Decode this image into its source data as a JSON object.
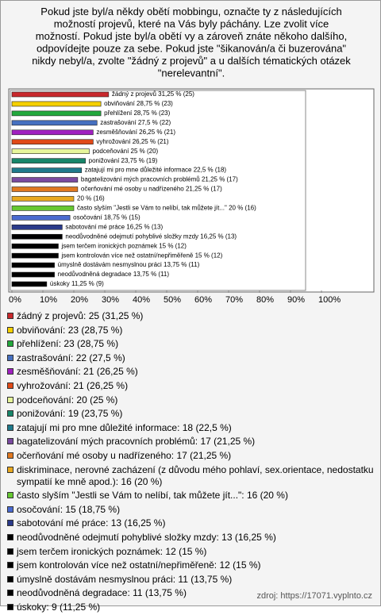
{
  "chart_data": {
    "type": "bar",
    "orientation": "horizontal",
    "title": [
      "Pokud jste byl/a někdy obětí mobbingu, označte ty z následujících",
      "možností projevů, které na Vás byly páchány. Lze zvolit více",
      "možností. Pokud jste byl/a obětí vy a zároveň znáte někoho dalšího,",
      "odpovídejte pouze za sebe. Pokud jste \"šikanován/a či buzerována\"",
      "nikdy nebyl/a, zvolte \"žádný z projevů\" a u dalších tématických otázek",
      "\"nerelevantní\"."
    ],
    "values": [
      31.25,
      28.75,
      28.75,
      27.5,
      26.25,
      26.25,
      25,
      23.75,
      22.5,
      21.25,
      21.25,
      20,
      20,
      18.75,
      16.25,
      16.25,
      15,
      15,
      13.75,
      13.75,
      11.25
    ],
    "counts": [
      25,
      23,
      23,
      22,
      21,
      21,
      20,
      19,
      18,
      17,
      17,
      16,
      16,
      15,
      13,
      13,
      12,
      12,
      11,
      11,
      9
    ],
    "value_labels": [
      "žádný z projevů 31,25 % (25)",
      "obviňování 28,75 % (23)",
      "přehlížení 28,75 % (23)",
      "zastrašování 27,5 % (22)",
      "zesměšňování 26,25 % (21)",
      "vyhrožování 26,25 % (21)",
      "podceňování 25 % (20)",
      "ponižování 23,75 % (19)",
      "zatajují mi pro mne důležité informace 22,5 % (18)",
      "bagatelizování mých pracovních problémů 21,25 % (17)",
      "očerňování mé osoby u nadřízeného 21,25 % (17)",
      "20 % (16)",
      "často slyším \"Jestli se Vám to nelíbí, tak můžete jít...\" 20 % (16)",
      "osočování 18,75 % (15)",
      "sabotování mé práce 16,25 % (13)",
      "neodůvodněné odejmutí pohyblivé složky mzdy 16,25 % (13)",
      "jsem terčem ironických poznámek 15 % (12)",
      "jsem kontrolován více než ostatní/nepřiměřeně 15 % (12)",
      "úmyslně dostávám nesmyslnou práci 13,75 % (11)",
      "neodůvodněná degradace 13,75 % (11)",
      "úskoky 11,25 % (9)"
    ],
    "legend": [
      "žádný z projevů: 25 (31,25 %)",
      "obviňování: 23 (28,75 %)",
      "přehlížení: 23 (28,75 %)",
      "zastrašování: 22 (27,5 %)",
      "zesměšňování: 21 (26,25 %)",
      "vyhrožování: 21 (26,25 %)",
      "podceňování: 20 (25 %)",
      "ponižování: 19 (23,75 %)",
      "zatajují mi pro mne důležité informace: 18 (22,5 %)",
      "bagatelizování mých pracovních problémů: 17 (21,25 %)",
      "očerňování mé osoby u nadřízeného: 17 (21,25 %)",
      "diskriminace, nerovné zacházení (z důvodu mého pohlaví, sex.orientace, nedostatku sympatií ke mně apod.): 16 (20 %)",
      "často slyším \"Jestli se Vám to nelíbí, tak můžete jít...\": 16 (20 %)",
      "osočování: 15 (18,75 %)",
      "sabotování mé práce: 13 (16,25 %)",
      "neodůvodněné odejmutí pohyblivé složky mzdy: 13 (16,25 %)",
      "jsem terčem ironických poznámek: 12 (15 %)",
      "jsem kontrolován více než ostatní/nepřiměřeně: 12 (15 %)",
      "úmyslně dostávám nesmyslnou práci: 11 (13,75 %)",
      "neodůvodněná degradace: 11 (13,75 %)",
      "úskoky: 9 (11,25 %)"
    ],
    "colors": [
      "#c8282c",
      "#f5d000",
      "#22a83c",
      "#4670c0",
      "#a020c0",
      "#e04a18",
      "#e6f59a",
      "#17866a",
      "#1f7a8c",
      "#7a4aa0",
      "#e07820",
      "#e8a820",
      "#66c832",
      "#4a6ad0",
      "#2a3a8a",
      "#000000",
      "#000000",
      "#000000",
      "#000000",
      "#000000",
      "#000000"
    ],
    "xlim": [
      0,
      100
    ],
    "xticks": [
      {
        "value": 0,
        "label": "0%"
      },
      {
        "value": 10,
        "label": "10%"
      },
      {
        "value": 20,
        "label": "20%"
      },
      {
        "value": 30,
        "label": "30%"
      },
      {
        "value": 40,
        "label": "40%"
      },
      {
        "value": 50,
        "label": "50%"
      },
      {
        "value": 60,
        "label": "60%"
      },
      {
        "value": 70,
        "label": "70%"
      },
      {
        "value": 80,
        "label": "80%"
      },
      {
        "value": 90,
        "label": "90%"
      },
      {
        "value": 100,
        "label": "100%"
      }
    ],
    "source": "zdroj: https://17071.vyplnto.cz"
  }
}
